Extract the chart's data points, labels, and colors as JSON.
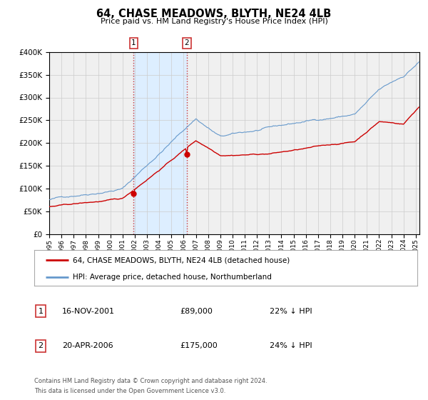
{
  "title": "64, CHASE MEADOWS, BLYTH, NE24 4LB",
  "subtitle": "Price paid vs. HM Land Registry's House Price Index (HPI)",
  "legend_entry1": "64, CHASE MEADOWS, BLYTH, NE24 4LB (detached house)",
  "legend_entry2": "HPI: Average price, detached house, Northumberland",
  "transaction1_date": "16-NOV-2001",
  "transaction1_price": "£89,000",
  "transaction1_hpi": "22% ↓ HPI",
  "transaction2_date": "20-APR-2006",
  "transaction2_price": "£175,000",
  "transaction2_hpi": "24% ↓ HPI",
  "footnote1": "Contains HM Land Registry data © Crown copyright and database right 2024.",
  "footnote2": "This data is licensed under the Open Government Licence v3.0.",
  "red_color": "#cc0000",
  "blue_color": "#6699cc",
  "shade_color": "#ddeeff",
  "vline_color": "#cc3333",
  "dot_color": "#cc0000",
  "grid_color": "#cccccc",
  "background_color": "#f0f0f0",
  "ylim_max": 400000,
  "ylim_min": 0,
  "t1_year": 2001.917,
  "t2_year": 2006.25
}
